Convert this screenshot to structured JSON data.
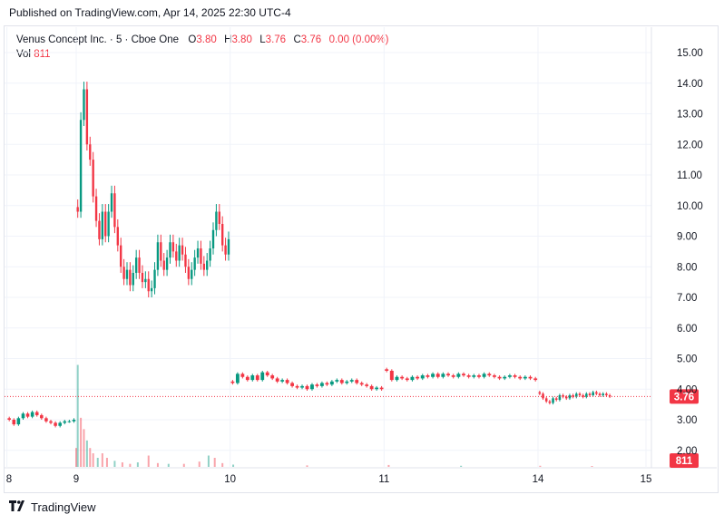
{
  "header": {
    "published": "Published on TradingView.com, Apr 14, 2025 22:30 UTC-4"
  },
  "legend": {
    "symbol": "Venus Concept Inc. · 5 · Cboe One",
    "o_label": "O",
    "o_value": "3.80",
    "h_label": "H",
    "h_value": "3.80",
    "l_label": "L",
    "l_value": "3.76",
    "c_label": "C",
    "c_value": "3.76",
    "change": "0.00 (0.00%)",
    "vol_label": "Vol",
    "vol_value": "811"
  },
  "footer": {
    "brand": "TradingView"
  },
  "colors": {
    "up": "#089981",
    "down": "#f23645",
    "grid": "#f0f3fa",
    "text": "#131722"
  },
  "chart_data": {
    "type": "candlestick",
    "ylim": [
      1.6,
      15.5
    ],
    "y_ticks": [
      "15.00",
      "14.00",
      "13.00",
      "12.00",
      "11.00",
      "10.00",
      "9.00",
      "8.00",
      "7.00",
      "6.00",
      "5.00",
      "4.00",
      "3.00",
      "2.00"
    ],
    "x_ticks": [
      {
        "label": "8",
        "session": -0.45
      },
      {
        "label": "9",
        "session": 0
      },
      {
        "label": "10",
        "session": 1
      },
      {
        "label": "11",
        "session": 2
      },
      {
        "label": "14",
        "session": 3
      },
      {
        "label": "15",
        "session": 4
      }
    ],
    "last_price_label": "3.76",
    "last_price": 3.76,
    "last_volume_label": "811",
    "volume_ymax": 15000,
    "segments": [
      {
        "start": -0.45,
        "end": 0,
        "points": [
          3.0,
          2.85,
          3.05,
          3.2,
          3.1,
          3.25,
          3.15,
          3.05,
          2.95,
          2.9,
          2.8,
          2.9,
          2.95,
          2.95,
          3.0
        ]
      },
      {
        "start": 0,
        "end": 1,
        "points": [
          9.8,
          12.8,
          13.8,
          12.0,
          11.5,
          10.3,
          9.5,
          8.9,
          9.8,
          9.0,
          9.8,
          10.4,
          9.3,
          8.7,
          8.0,
          7.6,
          7.9,
          7.4,
          7.8,
          8.3,
          7.8,
          7.5,
          7.6,
          7.2,
          7.3,
          7.9,
          8.8,
          8.2,
          7.9,
          8.3,
          8.8,
          8.5,
          8.2,
          8.7,
          8.4,
          8.0,
          7.6,
          7.9,
          8.3,
          8.6,
          8.1,
          7.9,
          8.2,
          8.6,
          9.2,
          9.8,
          9.4,
          8.7,
          8.4,
          8.9
        ]
      },
      {
        "start": 1,
        "end": 2,
        "points": [
          4.2,
          4.5,
          4.4,
          4.3,
          4.45,
          4.3,
          4.55,
          4.45,
          4.35,
          4.25,
          4.3,
          4.2,
          4.1,
          4.05,
          4.1,
          4.0,
          4.15,
          4.1,
          4.2,
          4.15,
          4.25,
          4.3,
          4.2,
          4.25,
          4.3,
          4.2,
          4.15,
          4.1,
          4.0,
          4.05,
          4.0
        ]
      },
      {
        "start": 2,
        "end": 3,
        "points": [
          4.6,
          4.3,
          4.4,
          4.35,
          4.3,
          4.4,
          4.35,
          4.45,
          4.4,
          4.5,
          4.4,
          4.5,
          4.45,
          4.4,
          4.5,
          4.45,
          4.4,
          4.45,
          4.4,
          4.5,
          4.45,
          4.4,
          4.35,
          4.4,
          4.45,
          4.4,
          4.35,
          4.4,
          4.35,
          4.3
        ]
      },
      {
        "start": 3,
        "end": 3.68,
        "points": [
          3.85,
          3.7,
          3.6,
          3.55,
          3.7,
          3.65,
          3.8,
          3.75,
          3.7,
          3.8,
          3.75,
          3.85,
          3.8,
          3.75,
          3.85,
          3.8,
          3.9,
          3.85,
          3.8,
          3.85,
          3.8,
          3.76
        ]
      }
    ],
    "volume_bars": [
      {
        "session": 0.0,
        "value": 2500
      },
      {
        "session": 0.01,
        "value": 13500
      },
      {
        "session": 0.03,
        "value": 6500
      },
      {
        "session": 0.05,
        "value": 5000
      },
      {
        "session": 0.07,
        "value": 3500
      },
      {
        "session": 0.09,
        "value": 2500
      },
      {
        "session": 0.11,
        "value": 1800
      },
      {
        "session": 0.14,
        "value": 1200
      },
      {
        "session": 0.17,
        "value": 1800
      },
      {
        "session": 0.2,
        "value": 1200
      },
      {
        "session": 0.25,
        "value": 800
      },
      {
        "session": 0.3,
        "value": 600
      },
      {
        "session": 0.35,
        "value": 400
      },
      {
        "session": 0.4,
        "value": 600
      },
      {
        "session": 0.47,
        "value": 1500
      },
      {
        "session": 0.53,
        "value": 500
      },
      {
        "session": 0.6,
        "value": 400
      },
      {
        "session": 0.7,
        "value": 400
      },
      {
        "session": 0.8,
        "value": 700
      },
      {
        "session": 0.86,
        "value": 1500
      },
      {
        "session": 0.9,
        "value": 1200
      },
      {
        "session": 0.95,
        "value": 500
      },
      {
        "session": 1.02,
        "value": 300
      },
      {
        "session": 1.5,
        "value": 200
      },
      {
        "session": 2.03,
        "value": 250
      },
      {
        "session": 2.5,
        "value": 150
      },
      {
        "session": 3.02,
        "value": 150
      },
      {
        "session": 3.5,
        "value": 100
      }
    ]
  }
}
